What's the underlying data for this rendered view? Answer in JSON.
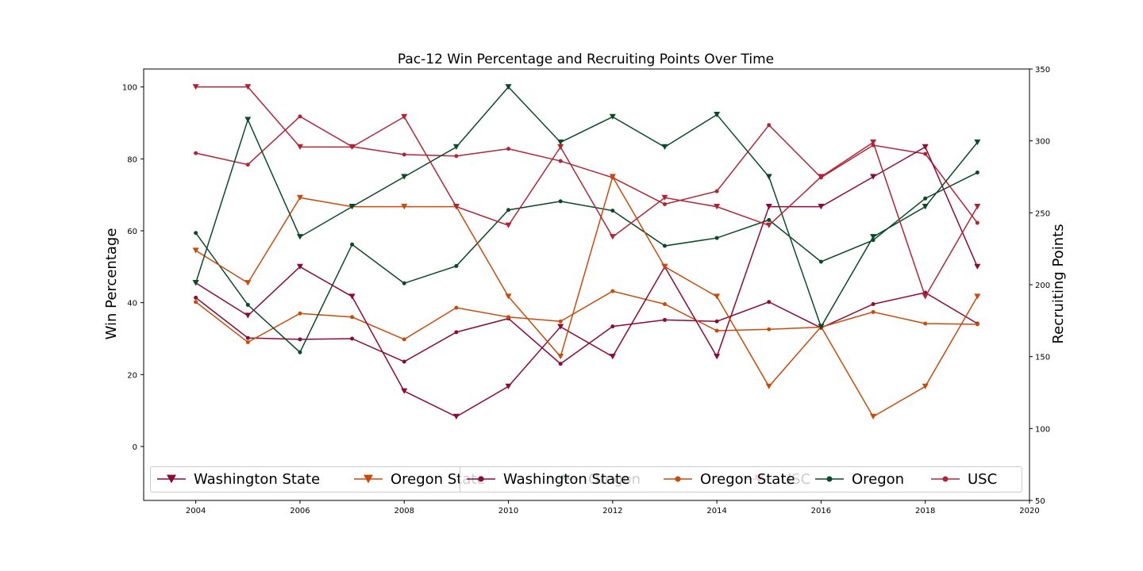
{
  "chart_data": {
    "type": "line",
    "title": "Pac-12 Win Percentage and Recruiting Points Over Time",
    "x": [
      2004,
      2005,
      2006,
      2007,
      2008,
      2009,
      2010,
      2011,
      2012,
      2013,
      2014,
      2015,
      2016,
      2017,
      2018,
      2019
    ],
    "xlim": [
      2003,
      2020
    ],
    "xticks": [
      2004,
      2006,
      2008,
      2010,
      2012,
      2014,
      2016,
      2018,
      2020
    ],
    "left_axis": {
      "label": "Win Percentage",
      "ylim": [
        -15,
        105
      ],
      "ticks": [
        0,
        20,
        40,
        60,
        80,
        100
      ]
    },
    "right_axis": {
      "label": "Recruiting Points",
      "ylim": [
        50,
        350
      ],
      "ticks": [
        50,
        100,
        150,
        200,
        250,
        300,
        350
      ]
    },
    "colors": {
      "Washington State": "#8b0a3a",
      "Oregon State": "#c84b0c",
      "Oregon": "#0a4a2a",
      "USC": "#b02535"
    },
    "win_series": [
      {
        "name": "Washington State",
        "values": [
          45.5,
          36.4,
          50,
          41.7,
          15.4,
          8.3,
          16.7,
          33.3,
          25,
          50,
          25,
          66.7,
          66.7,
          75,
          83.3,
          50
        ]
      },
      {
        "name": "Oregon State",
        "values": [
          54.5,
          45.5,
          69.2,
          66.7,
          66.7,
          66.7,
          41.7,
          25,
          75,
          50,
          41.7,
          16.7,
          33.3,
          8.3,
          16.7,
          41.7
        ]
      },
      {
        "name": "Oregon",
        "values": [
          45.5,
          90.9,
          58.3,
          66.7,
          75,
          83.3,
          100,
          84.6,
          91.7,
          83.3,
          92.3,
          75,
          33.3,
          58.3,
          66.7,
          84.6
        ]
      },
      {
        "name": "USC",
        "values": [
          100,
          100,
          83.3,
          83.3,
          91.7,
          66.7,
          61.5,
          83.3,
          58.3,
          69.2,
          66.7,
          61.5,
          75,
          84.6,
          41.7,
          66.7
        ]
      }
    ],
    "recruiting_series": [
      {
        "name": "Washington State",
        "values": [
          191,
          163,
          162,
          162.5,
          146.5,
          167,
          176.5,
          145,
          171,
          175.5,
          174.5,
          188,
          170,
          186.5,
          194.5,
          173
        ]
      },
      {
        "name": "Oregon State",
        "values": [
          188,
          160,
          180,
          177.5,
          162,
          184,
          177.5,
          174.5,
          195.5,
          186.5,
          168,
          169,
          170.5,
          181,
          173,
          172.5
        ]
      },
      {
        "name": "Oregon",
        "values": [
          236,
          186,
          153,
          228,
          201,
          213,
          252,
          258,
          251.5,
          227,
          232.5,
          245,
          216,
          231,
          260,
          278
        ]
      },
      {
        "name": "USC",
        "values": [
          291.5,
          283.5,
          317,
          296,
          290.5,
          289.5,
          294.5,
          286,
          274.5,
          256,
          265,
          311,
          274.5,
          297,
          291,
          243
        ]
      }
    ],
    "legend_left": [
      "Washington State",
      "Oregon State",
      "Oregon",
      "USC"
    ],
    "legend_right": [
      "Washington State",
      "Oregon State",
      "Oregon",
      "USC"
    ],
    "legend_placement": "lower center (two overlapping legends)",
    "grid": false
  }
}
